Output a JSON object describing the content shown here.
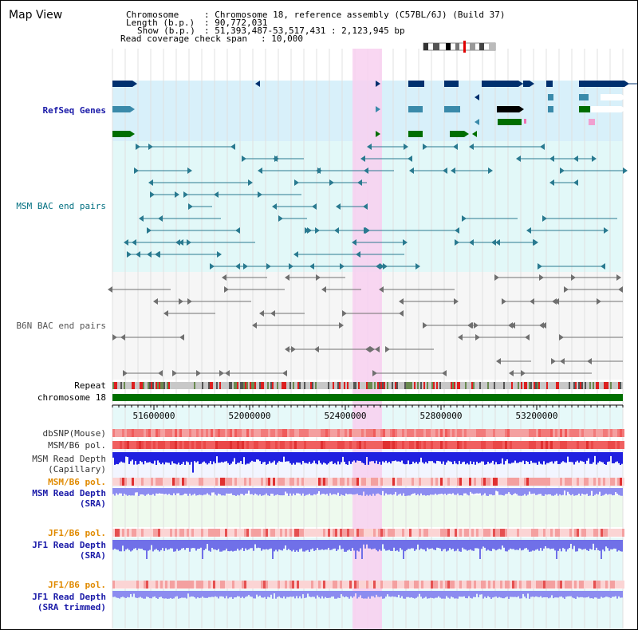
{
  "header": {
    "title": "Map View",
    "chromosome_label": "Chromosome",
    "chromosome_value": ": Chromosome 18, reference assembly (C57BL/6J) (Build 37)",
    "length_label": "Length (b.p.)",
    "length_value": ": 90,772,031",
    "show_label": "Show (b.p.)",
    "show_value": ": 51,393,487-53,517,431 : 2,123,945 bp",
    "coverage_label": "Read coverage check span",
    "coverage_value": ": 10,000"
  },
  "tracks": {
    "refseq": "RefSeq Genes",
    "msm_bac": "MSM BAC end pairs",
    "b6n_bac": "B6N BAC end pairs",
    "repeat": "Repeat",
    "chromosome": "chromosome 18",
    "dbsnp": "dbSNP(Mouse)",
    "msm_b6_pol_1": "MSM/B6 pol.",
    "msm_read_depth_cap_1": "MSM Read Depth",
    "msm_read_depth_cap_2": "(Capillary)",
    "msm_b6_pol_2": "MSM/B6 pol.",
    "msm_read_depth_sra_1": "MSM Read Depth",
    "msm_read_depth_sra_2": "(SRA)",
    "jf1_b6_pol_1": "JF1/B6 pol.",
    "jf1_read_depth_sra_1": "JF1 Read Depth",
    "jf1_read_depth_sra_2": "(SRA)",
    "jf1_b6_pol_2": "JF1/B6 pol.",
    "jf1_read_depth_trim_1": "JF1 Read Depth",
    "jf1_read_depth_trim_2": "(SRA trimmed)"
  },
  "axis": {
    "ticks": [
      "51600000",
      "52000000",
      "52400000",
      "52800000",
      "53200000"
    ]
  },
  "colors": {
    "refseq_bg": "#d8f0fa",
    "msm_bg": "#e2f8f8",
    "b6n_bg": "#f6f6f6",
    "highlight": "#f8d0f0",
    "gene_navy": "#00306e",
    "gene_teal": "#3a8aaa",
    "gene_green": "#006e00",
    "msm_line": "#2a7a90",
    "b6n_line": "#707070",
    "repeat_red": "#dd2020",
    "chrom_green": "#007000",
    "pol_red": "#e83a3a",
    "depth_blue": "#2020e0",
    "depth_light": "#8c8cf0"
  }
}
